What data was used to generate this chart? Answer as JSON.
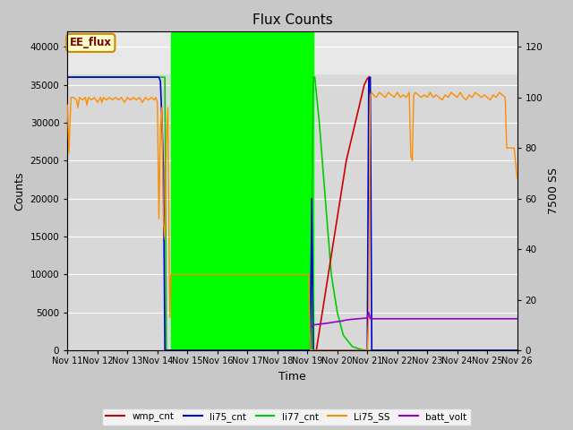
{
  "title": "Flux Counts",
  "xlabel": "Time",
  "ylabel_left": "Counts",
  "ylabel_right": "7500 SS",
  "ylim_left": [
    0,
    42000
  ],
  "ylim_right": [
    0,
    126
  ],
  "figsize": [
    6.4,
    4.8
  ],
  "dpi": 100,
  "fig_bg_color": "#c8c8c8",
  "plot_bg_color": "#d8d8d8",
  "top_strip_color": "#e8e8e8",
  "green_fill_xstart": 14.45,
  "green_fill_xend": 19.2,
  "green_fill_color": "#00ff00",
  "annotation": {
    "text": "EE_flux",
    "facecolor": "#ffffcc",
    "edgecolor": "#cc8800",
    "textcolor": "#800000"
  },
  "series": {
    "wmp_cnt": {
      "color": "#cc0000",
      "linewidth": 1.2,
      "points": [
        [
          19.3,
          0
        ],
        [
          19.5,
          5000
        ],
        [
          19.7,
          10000
        ],
        [
          19.9,
          15000
        ],
        [
          20.1,
          20000
        ],
        [
          20.3,
          25000
        ],
        [
          20.6,
          30000
        ],
        [
          20.9,
          35000
        ],
        [
          21.0,
          35800
        ],
        [
          21.05,
          36000
        ]
      ]
    },
    "li75_cnt": {
      "color": "#0000cc",
      "linewidth": 1.2,
      "points": [
        [
          11.0,
          36000
        ],
        [
          13.95,
          36000
        ],
        [
          14.05,
          36000
        ],
        [
          14.1,
          35500
        ],
        [
          14.15,
          30500
        ],
        [
          14.2,
          24000
        ],
        [
          14.25,
          0
        ],
        [
          14.3,
          0
        ],
        [
          19.1,
          0
        ],
        [
          19.15,
          20000
        ],
        [
          19.2,
          0
        ],
        [
          21.0,
          0
        ],
        [
          21.05,
          36000
        ],
        [
          21.1,
          36000
        ],
        [
          21.15,
          0
        ],
        [
          26.0,
          0
        ]
      ]
    },
    "li77_cnt": {
      "color": "#00cc00",
      "linewidth": 1.2,
      "points": [
        [
          11.0,
          36000
        ],
        [
          14.25,
          36000
        ],
        [
          14.3,
          0
        ],
        [
          19.1,
          0
        ],
        [
          19.2,
          36000
        ],
        [
          19.25,
          36000
        ],
        [
          19.4,
          30000
        ],
        [
          19.6,
          20000
        ],
        [
          19.8,
          10000
        ],
        [
          20.0,
          5000
        ],
        [
          20.2,
          2000
        ],
        [
          20.5,
          500
        ],
        [
          20.8,
          100
        ],
        [
          21.0,
          0
        ],
        [
          26.0,
          0
        ]
      ]
    },
    "Li75_SS": {
      "color": "#ff8c00",
      "linewidth": 1.0,
      "secondary": true,
      "points": [
        [
          11.0,
          97
        ],
        [
          11.05,
          78
        ],
        [
          11.1,
          95
        ],
        [
          11.12,
          100
        ],
        [
          11.2,
          100
        ],
        [
          11.3,
          99
        ],
        [
          11.35,
          96
        ],
        [
          11.4,
          100
        ],
        [
          11.5,
          99
        ],
        [
          11.6,
          100
        ],
        [
          11.65,
          97
        ],
        [
          11.7,
          100
        ],
        [
          11.8,
          99
        ],
        [
          11.9,
          100
        ],
        [
          12.0,
          98
        ],
        [
          12.1,
          100
        ],
        [
          12.15,
          98
        ],
        [
          12.2,
          100
        ],
        [
          12.3,
          99
        ],
        [
          12.4,
          100
        ],
        [
          12.5,
          99
        ],
        [
          12.6,
          100
        ],
        [
          12.7,
          99
        ],
        [
          12.8,
          100
        ],
        [
          12.9,
          98
        ],
        [
          13.0,
          100
        ],
        [
          13.1,
          99
        ],
        [
          13.2,
          100
        ],
        [
          13.3,
          99
        ],
        [
          13.4,
          100
        ],
        [
          13.5,
          98
        ],
        [
          13.6,
          100
        ],
        [
          13.7,
          99
        ],
        [
          13.8,
          100
        ],
        [
          13.9,
          99
        ],
        [
          13.95,
          100
        ],
        [
          14.0,
          98
        ],
        [
          14.05,
          52
        ],
        [
          14.1,
          88
        ],
        [
          14.15,
          96
        ],
        [
          14.2,
          51
        ],
        [
          14.25,
          44
        ],
        [
          14.3,
          82
        ],
        [
          14.35,
          96
        ],
        [
          14.4,
          28
        ],
        [
          14.42,
          13
        ],
        [
          14.45,
          30
        ],
        [
          19.05,
          30
        ],
        [
          19.1,
          0
        ],
        [
          21.0,
          0
        ],
        [
          21.05,
          15
        ],
        [
          21.1,
          101
        ],
        [
          21.15,
          102
        ],
        [
          21.2,
          101
        ],
        [
          21.3,
          100
        ],
        [
          21.4,
          102
        ],
        [
          21.5,
          101
        ],
        [
          21.6,
          100
        ],
        [
          21.7,
          102
        ],
        [
          21.8,
          101
        ],
        [
          21.9,
          100
        ],
        [
          22.0,
          102
        ],
        [
          22.1,
          100
        ],
        [
          22.2,
          101
        ],
        [
          22.3,
          100
        ],
        [
          22.4,
          102
        ],
        [
          22.45,
          77
        ],
        [
          22.5,
          75
        ],
        [
          22.55,
          101
        ],
        [
          22.6,
          102
        ],
        [
          22.7,
          101
        ],
        [
          22.8,
          100
        ],
        [
          22.9,
          101
        ],
        [
          23.0,
          100
        ],
        [
          23.1,
          102
        ],
        [
          23.2,
          100
        ],
        [
          23.3,
          101
        ],
        [
          23.4,
          100
        ],
        [
          23.5,
          99
        ],
        [
          23.6,
          101
        ],
        [
          23.7,
          100
        ],
        [
          23.8,
          102
        ],
        [
          23.9,
          101
        ],
        [
          24.0,
          100
        ],
        [
          24.1,
          102
        ],
        [
          24.2,
          100
        ],
        [
          24.3,
          99
        ],
        [
          24.4,
          101
        ],
        [
          24.5,
          100
        ],
        [
          24.6,
          102
        ],
        [
          24.7,
          101
        ],
        [
          24.8,
          100
        ],
        [
          24.9,
          101
        ],
        [
          25.0,
          100
        ],
        [
          25.1,
          99
        ],
        [
          25.2,
          101
        ],
        [
          25.3,
          100
        ],
        [
          25.4,
          102
        ],
        [
          25.5,
          101
        ],
        [
          25.6,
          100
        ],
        [
          25.65,
          80
        ],
        [
          25.8,
          80
        ],
        [
          25.9,
          80
        ],
        [
          26.0,
          68
        ]
      ]
    },
    "batt_volt": {
      "color": "#9900cc",
      "linewidth": 1.2,
      "secondary": true,
      "points": [
        [
          19.15,
          9.5
        ],
        [
          19.2,
          10
        ],
        [
          19.3,
          10.2
        ],
        [
          19.5,
          10.5
        ],
        [
          19.7,
          10.8
        ],
        [
          19.9,
          11.2
        ],
        [
          20.1,
          11.5
        ],
        [
          20.3,
          12.0
        ],
        [
          20.5,
          12.3
        ],
        [
          20.7,
          12.5
        ],
        [
          21.0,
          12.8
        ],
        [
          21.05,
          15
        ],
        [
          21.1,
          12.5
        ],
        [
          21.2,
          12.5
        ],
        [
          21.5,
          12.5
        ],
        [
          22.0,
          12.5
        ],
        [
          22.5,
          12.5
        ],
        [
          23.0,
          12.5
        ],
        [
          23.5,
          12.5
        ],
        [
          24.0,
          12.5
        ],
        [
          24.5,
          12.5
        ],
        [
          25.0,
          12.5
        ],
        [
          25.5,
          12.5
        ],
        [
          26.0,
          12.5
        ]
      ]
    }
  },
  "xticks": [
    11,
    12,
    13,
    14,
    15,
    16,
    17,
    18,
    19,
    20,
    21,
    22,
    23,
    24,
    25,
    26
  ],
  "xtick_labels": [
    "Nov 11",
    "Nov 12",
    "Nov 13",
    "Nov 14",
    "Nov 15",
    "Nov 16",
    "Nov 17",
    "Nov 18",
    "Nov 19",
    "Nov 20",
    "Nov 21",
    "Nov 22",
    "Nov 23",
    "Nov 24",
    "Nov 25",
    "Nov 26"
  ],
  "yticks_left": [
    0,
    5000,
    10000,
    15000,
    20000,
    25000,
    30000,
    35000,
    40000
  ],
  "yticks_right": [
    0,
    20,
    40,
    60,
    80,
    100,
    120
  ]
}
